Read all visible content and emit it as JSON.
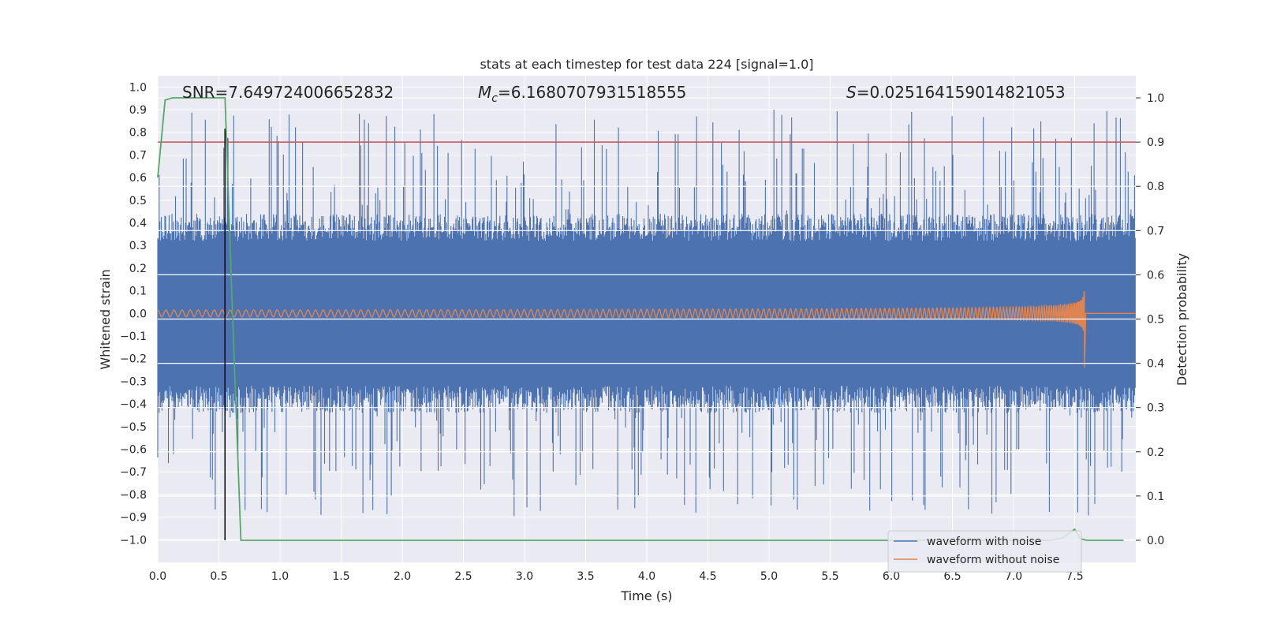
{
  "chart_data": {
    "type": "line",
    "title": "stats at each timestep for test data 224 [signal=1.0]",
    "xlabel": "Time (s)",
    "ylabel": "Whitened strain",
    "ylabel_right": "Detection probability",
    "xlim": [
      0.0,
      8.0
    ],
    "ylim": [
      -1.1,
      1.05
    ],
    "ylim_right": [
      -0.05,
      1.05
    ],
    "x_ticks": [
      "0.0",
      "0.5",
      "1.0",
      "1.5",
      "2.0",
      "2.5",
      "3.0",
      "3.5",
      "4.0",
      "4.5",
      "5.0",
      "5.5",
      "6.0",
      "6.5",
      "7.0",
      "7.5"
    ],
    "y_ticks": [
      "1.0",
      "0.9",
      "0.8",
      "0.7",
      "0.6",
      "0.5",
      "0.4",
      "0.3",
      "0.2",
      "0.1",
      "0.0",
      "-0.1",
      "-0.2",
      "-0.3",
      "-0.4",
      "-0.5",
      "-0.6",
      "-0.7",
      "-0.8",
      "-0.9",
      "-1.0"
    ],
    "y_ticks_right": [
      "1.0",
      "0.9",
      "0.8",
      "0.7",
      "0.6",
      "0.5",
      "0.4",
      "0.3",
      "0.2",
      "0.1",
      "0.0"
    ],
    "annotations": {
      "snr": "SNR=7.649724006652832",
      "mc_symbol": "M",
      "mc_sub": "c",
      "mc_value": "=6.1680707931518555",
      "s_symbol": "S",
      "s_value": "=0.025164159014821053"
    },
    "threshold_probability": 0.9,
    "merger_time": 0.55,
    "series": [
      {
        "name": "waveform with noise",
        "color": "#4c72b0",
        "axis": "left",
        "description_values": {
          "typical_abs_max": 0.45,
          "peak_max": 0.95,
          "peak_min": -0.98
        }
      },
      {
        "name": "waveform without noise",
        "color": "#dd8452",
        "axis": "left",
        "chirp": {
          "start_amp": 0.015,
          "end_time": 7.58,
          "end_amp": 0.18
        }
      },
      {
        "name": "detection probability",
        "color": "#55a868",
        "axis": "right",
        "x": [
          0.0,
          0.06,
          0.12,
          0.2,
          0.3,
          0.4,
          0.5,
          0.55,
          0.6,
          0.68,
          1.0,
          2.0,
          3.0,
          4.0,
          5.0,
          6.0,
          7.0,
          7.3,
          7.4,
          7.45,
          7.5,
          7.55,
          7.6,
          7.9
        ],
        "y": [
          0.82,
          0.995,
          1.0,
          1.0,
          1.0,
          1.0,
          1.0,
          1.0,
          0.6,
          0.0,
          0.0,
          0.0,
          0.0,
          0.0,
          0.0,
          0.0,
          0.0,
          0.0,
          0.005,
          0.015,
          0.025,
          0.003,
          0.0,
          0.0
        ]
      }
    ],
    "legend": {
      "position": "lower-right",
      "entries": [
        {
          "label": "waveform with noise",
          "color": "#4c72b0"
        },
        {
          "label": "waveform without noise",
          "color": "#dd8452"
        }
      ]
    }
  }
}
